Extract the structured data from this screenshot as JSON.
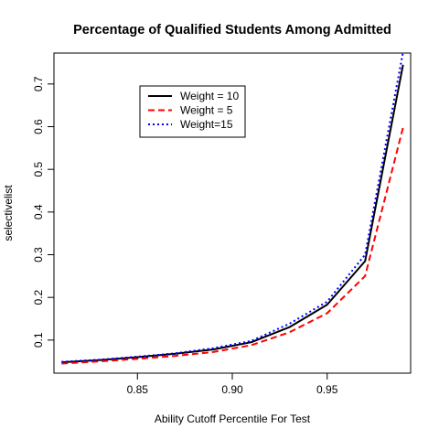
{
  "chart_data": {
    "type": "line",
    "title": "Percentage of Qualified Students Among Admitted",
    "xlabel": "Ability Cutoff Percentile For Test",
    "ylabel": "selectivelist",
    "xlim": [
      0.806,
      0.994
    ],
    "ylim": [
      0.0225,
      0.7725
    ],
    "x_ticks": [
      0.85,
      0.9,
      0.95
    ],
    "x_tick_labels": [
      "0.85",
      "0.90",
      "0.95"
    ],
    "y_ticks": [
      0.1,
      0.2,
      0.3,
      0.4,
      0.5,
      0.6,
      0.7
    ],
    "y_tick_labels": [
      "0.1",
      "0.2",
      "0.3",
      "0.4",
      "0.5",
      "0.6",
      "0.7"
    ],
    "legend_position": "top-left, inside plot",
    "grid": false,
    "x": [
      0.81,
      0.83,
      0.85,
      0.87,
      0.89,
      0.91,
      0.93,
      0.95,
      0.97,
      0.99
    ],
    "series": [
      {
        "name": "Weight = 10",
        "color": "#000000",
        "dash": "solid",
        "values": [
          0.048,
          0.053,
          0.06,
          0.068,
          0.078,
          0.095,
          0.13,
          0.183,
          0.285,
          0.745
        ]
      },
      {
        "name": "Weight = 5",
        "color": "#ff0000",
        "dash": "dashed",
        "values": [
          0.045,
          0.05,
          0.056,
          0.063,
          0.072,
          0.088,
          0.118,
          0.163,
          0.25,
          0.598
        ]
      },
      {
        "name": "Weight=15",
        "color": "#0000ff",
        "dash": "dotted",
        "values": [
          0.049,
          0.054,
          0.061,
          0.069,
          0.081,
          0.098,
          0.138,
          0.19,
          0.3,
          0.775
        ]
      }
    ]
  }
}
